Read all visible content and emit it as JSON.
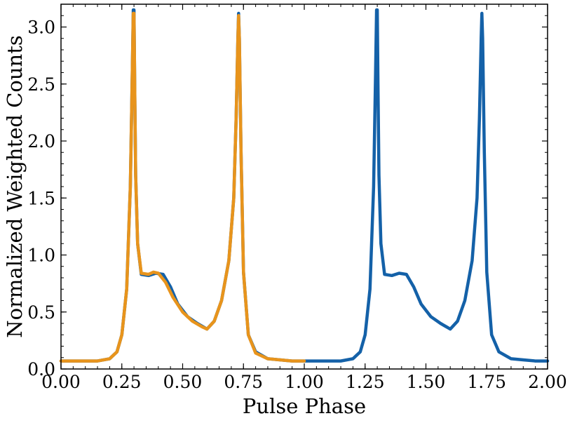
{
  "chart_data": {
    "type": "line",
    "xlabel": "Pulse Phase",
    "ylabel": "Normalized Weighted Counts",
    "xlim": [
      0.0,
      2.0
    ],
    "ylim": [
      0.0,
      3.2
    ],
    "grid": false,
    "xticks": [
      "0.00",
      "0.25",
      "0.50",
      "0.75",
      "1.00",
      "1.25",
      "1.50",
      "1.75",
      "2.00"
    ],
    "yticks": [
      "0.0",
      "0.5",
      "1.0",
      "1.5",
      "2.0",
      "2.5",
      "3.0"
    ],
    "colors": {
      "series_1": "#1461a8",
      "series_2": "#e8941c"
    },
    "series": [
      {
        "x": [
          0.0,
          0.05,
          0.1,
          0.15,
          0.2,
          0.23,
          0.25,
          0.27,
          0.285,
          0.293,
          0.297,
          0.3,
          0.303,
          0.307,
          0.315,
          0.33,
          0.36,
          0.39,
          0.42,
          0.45,
          0.48,
          0.52,
          0.56,
          0.6,
          0.63,
          0.66,
          0.69,
          0.71,
          0.72,
          0.727,
          0.73,
          0.733,
          0.74,
          0.75,
          0.77,
          0.8,
          0.85,
          0.9,
          0.95,
          1.0,
          1.05,
          1.1,
          1.15,
          1.2,
          1.23,
          1.25,
          1.27,
          1.285,
          1.293,
          1.297,
          1.3,
          1.303,
          1.307,
          1.315,
          1.33,
          1.36,
          1.39,
          1.42,
          1.45,
          1.48,
          1.52,
          1.56,
          1.6,
          1.63,
          1.66,
          1.69,
          1.71,
          1.72,
          1.727,
          1.73,
          1.733,
          1.74,
          1.75,
          1.77,
          1.8,
          1.85,
          1.9,
          1.95,
          2.0
        ],
        "y": [
          0.07,
          0.07,
          0.07,
          0.07,
          0.09,
          0.15,
          0.3,
          0.7,
          1.6,
          2.6,
          3.15,
          3.15,
          2.5,
          1.7,
          1.1,
          0.83,
          0.82,
          0.84,
          0.83,
          0.72,
          0.57,
          0.46,
          0.4,
          0.35,
          0.42,
          0.6,
          0.95,
          1.5,
          2.2,
          2.9,
          3.12,
          2.9,
          1.9,
          0.85,
          0.3,
          0.15,
          0.09,
          0.08,
          0.07,
          0.07,
          0.07,
          0.07,
          0.07,
          0.09,
          0.15,
          0.3,
          0.7,
          1.6,
          2.6,
          3.15,
          3.15,
          2.5,
          1.7,
          1.1,
          0.83,
          0.82,
          0.84,
          0.83,
          0.72,
          0.57,
          0.46,
          0.4,
          0.35,
          0.42,
          0.6,
          0.95,
          1.5,
          2.2,
          2.9,
          3.12,
          2.9,
          1.9,
          0.85,
          0.3,
          0.15,
          0.09,
          0.08,
          0.07,
          0.07
        ]
      },
      {
        "x": [
          0.0,
          0.05,
          0.1,
          0.15,
          0.2,
          0.23,
          0.25,
          0.27,
          0.285,
          0.293,
          0.297,
          0.3,
          0.303,
          0.307,
          0.315,
          0.33,
          0.36,
          0.38,
          0.4,
          0.43,
          0.46,
          0.5,
          0.54,
          0.58,
          0.6,
          0.63,
          0.66,
          0.69,
          0.71,
          0.72,
          0.727,
          0.73,
          0.733,
          0.74,
          0.75,
          0.77,
          0.8,
          0.85,
          0.9,
          0.95,
          1.0
        ],
        "y": [
          0.07,
          0.07,
          0.07,
          0.07,
          0.09,
          0.15,
          0.3,
          0.7,
          1.6,
          2.6,
          3.12,
          3.12,
          2.5,
          1.7,
          1.1,
          0.84,
          0.83,
          0.85,
          0.84,
          0.76,
          0.63,
          0.5,
          0.42,
          0.37,
          0.35,
          0.42,
          0.6,
          0.95,
          1.5,
          2.2,
          2.9,
          3.1,
          2.9,
          1.9,
          0.85,
          0.3,
          0.14,
          0.09,
          0.08,
          0.07,
          0.07
        ]
      }
    ]
  }
}
